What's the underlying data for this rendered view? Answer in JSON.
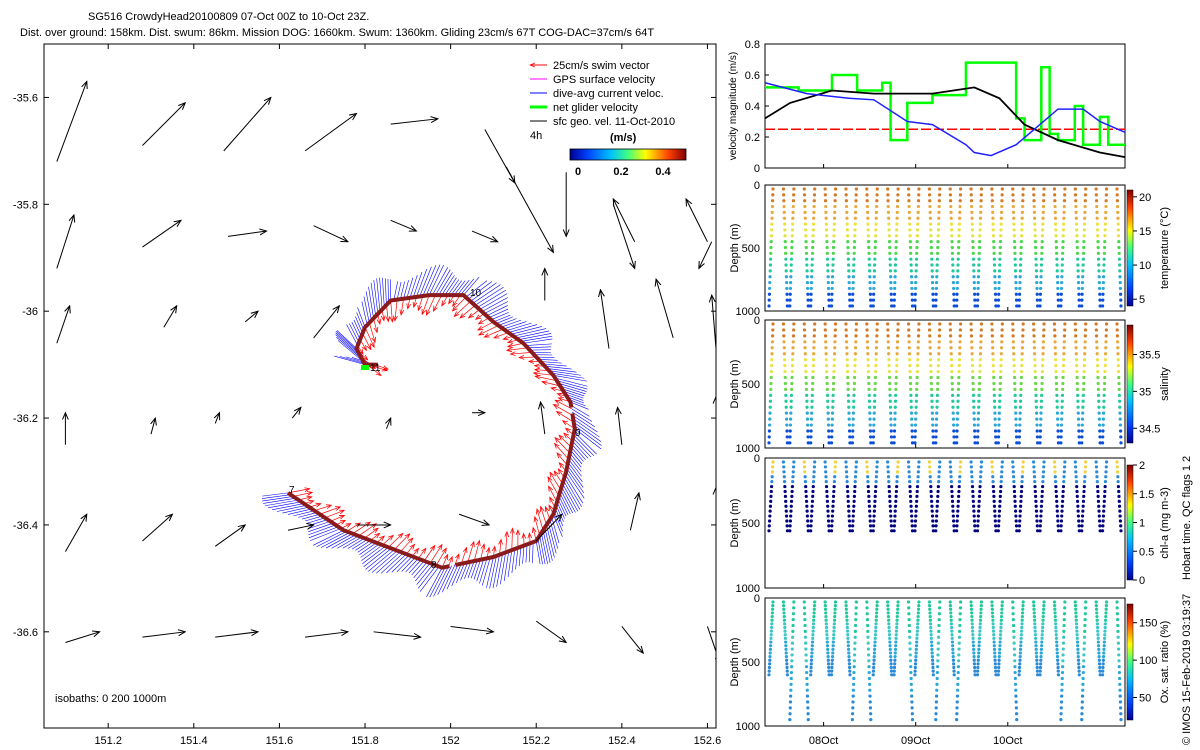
{
  "header": {
    "title_line1": "SG516 CrowdyHead20100809 07-Oct 00Z to 10-Oct 23Z.",
    "title_line2": "Dist. over ground: 158km. Dist. swum: 86km. Mission DOG: 1660km. Swum: 1360km. Gliding 23cm/s 67T COG-DAC=37cm/s 64T"
  },
  "map": {
    "legend": [
      {
        "label": "25cm/s swim vector",
        "color": "#ff0000"
      },
      {
        "label": "GPS surface velocity",
        "color": "#ff00ff"
      },
      {
        "label": "dive-avg current veloc.",
        "color": "#0000ff"
      },
      {
        "label": "net glider velocity",
        "color": "#00ff00"
      },
      {
        "label": "sfc geo. vel. 11-Oct-2010",
        "color": "#000000"
      }
    ],
    "legend_note": "4h",
    "colorbar": {
      "title": "(m/s)",
      "ticks": [
        "0",
        "0.2",
        "0.4"
      ],
      "range": [
        0,
        0.5
      ]
    },
    "day_labels": [
      "7",
      "8",
      "9",
      "10",
      "11"
    ],
    "isobaths_text": "isobaths: 0   200  1000m",
    "xlim": [
      151.05,
      152.62
    ],
    "ylim": [
      -36.78,
      -35.5
    ],
    "xticks": [
      151.2,
      151.4,
      151.6,
      151.8,
      152,
      152.2,
      152.4,
      152.6
    ],
    "xtick_labels": [
      "151.2",
      "151.4",
      "151.6",
      "151.8",
      "152",
      "152.2",
      "152.4",
      "152.6"
    ],
    "yticks": [
      -35.6,
      -35.8,
      -36,
      -36.2,
      -36.4,
      -36.6
    ],
    "ytick_labels": [
      "-35.6",
      "-35.8",
      "-36",
      "-36.2",
      "-36.4",
      "-36.6"
    ],
    "track": [
      [
        151.62,
        -36.34
      ],
      [
        151.75,
        -36.41
      ],
      [
        151.98,
        -36.48
      ],
      [
        152.1,
        -36.46
      ],
      [
        152.2,
        -36.43
      ],
      [
        152.24,
        -36.38
      ],
      [
        152.27,
        -36.3
      ],
      [
        152.29,
        -36.22
      ],
      [
        152.28,
        -36.17
      ],
      [
        152.24,
        -36.12
      ],
      [
        152.17,
        -36.06
      ],
      [
        152.1,
        -36.02
      ],
      [
        152.03,
        -35.97
      ],
      [
        151.95,
        -35.97
      ],
      [
        151.86,
        -35.98
      ],
      [
        151.8,
        -36.03
      ],
      [
        151.78,
        -36.07
      ],
      [
        151.8,
        -36.1
      ],
      [
        151.83,
        -36.1
      ]
    ],
    "geo_vectors": [
      [
        151.08,
        -35.72,
        151.15,
        -35.57
      ],
      [
        151.28,
        -35.69,
        151.38,
        -35.61
      ],
      [
        151.47,
        -35.7,
        151.58,
        -35.6
      ],
      [
        151.66,
        -35.7,
        151.78,
        -35.63
      ],
      [
        151.86,
        -35.65,
        151.97,
        -35.64
      ],
      [
        152.08,
        -35.66,
        152.15,
        -35.76
      ],
      [
        152.27,
        -35.74,
        152.27,
        -35.86
      ],
      [
        152.43,
        -35.87,
        152.38,
        -35.79
      ],
      [
        152.6,
        -35.87,
        152.55,
        -35.79
      ],
      [
        151.08,
        -35.92,
        151.12,
        -35.82
      ],
      [
        151.28,
        -35.88,
        151.37,
        -35.83
      ],
      [
        151.48,
        -35.86,
        151.57,
        -35.85
      ],
      [
        151.68,
        -35.84,
        151.76,
        -35.87
      ],
      [
        151.86,
        -35.83,
        151.92,
        -35.85
      ],
      [
        152.05,
        -35.85,
        152.11,
        -35.87
      ],
      [
        152.13,
        -35.73,
        152.24,
        -35.89
      ],
      [
        152.38,
        -35.8,
        152.43,
        -35.92
      ],
      [
        152.61,
        -35.87,
        152.58,
        -35.92
      ],
      [
        151.08,
        -36.06,
        151.11,
        -35.99
      ],
      [
        151.33,
        -36.03,
        151.36,
        -35.99
      ],
      [
        151.52,
        -36.02,
        151.55,
        -36.0
      ],
      [
        151.68,
        -36.05,
        151.74,
        -35.99
      ],
      [
        152.22,
        -35.98,
        152.22,
        -35.92
      ],
      [
        152.37,
        -36.07,
        152.35,
        -35.96
      ],
      [
        152.52,
        -36.05,
        152.48,
        -35.94
      ],
      [
        152.62,
        -36.07,
        152.61,
        -35.97
      ],
      [
        151.1,
        -36.25,
        151.1,
        -36.19
      ],
      [
        151.3,
        -36.23,
        151.31,
        -36.2
      ],
      [
        151.45,
        -36.21,
        151.46,
        -36.19
      ],
      [
        151.63,
        -36.2,
        151.65,
        -36.18
      ],
      [
        151.85,
        -36.22,
        151.86,
        -36.2
      ],
      [
        152.05,
        -36.19,
        152.08,
        -36.19
      ],
      [
        152.22,
        -36.23,
        152.21,
        -36.17
      ],
      [
        152.4,
        -36.25,
        152.39,
        -36.18
      ],
      [
        152.62,
        -36.26,
        152.62,
        -36.16
      ],
      [
        151.1,
        -36.45,
        151.15,
        -36.38
      ],
      [
        151.28,
        -36.43,
        151.35,
        -36.38
      ],
      [
        151.45,
        -36.44,
        151.52,
        -36.4
      ],
      [
        151.62,
        -36.41,
        151.68,
        -36.4
      ],
      [
        151.78,
        -36.4,
        151.86,
        -36.4
      ],
      [
        152.02,
        -36.38,
        152.09,
        -36.4
      ],
      [
        152.2,
        -36.43,
        152.26,
        -36.38
      ],
      [
        152.42,
        -36.41,
        152.44,
        -36.34
      ],
      [
        152.62,
        -36.43,
        152.62,
        -36.33
      ],
      [
        151.1,
        -36.62,
        151.18,
        -36.6
      ],
      [
        151.28,
        -36.61,
        151.38,
        -36.6
      ],
      [
        151.45,
        -36.61,
        151.55,
        -36.6
      ],
      [
        151.66,
        -36.61,
        151.76,
        -36.6
      ],
      [
        151.82,
        -36.6,
        151.93,
        -36.61
      ],
      [
        152.0,
        -36.59,
        152.1,
        -36.6
      ],
      [
        152.2,
        -36.58,
        152.27,
        -36.62
      ],
      [
        152.4,
        -36.59,
        152.45,
        -36.64
      ],
      [
        152.6,
        -36.59,
        152.63,
        -36.66
      ]
    ]
  },
  "velocity_panel": {
    "ylabel": "velocity magnitude (m/s)",
    "ylim": [
      0,
      0.8
    ],
    "yticks": [
      "0",
      "0.2",
      "0.4",
      "0.6",
      "0.8"
    ],
    "swim_speed": 0.25,
    "dac_speed": [
      [
        0,
        0.55
      ],
      [
        0.5,
        0.48
      ],
      [
        1,
        0.45
      ],
      [
        1.3,
        0.44
      ],
      [
        1.7,
        0.3
      ],
      [
        2,
        0.28
      ],
      [
        2.4,
        0.15
      ],
      [
        2.5,
        0.1
      ],
      [
        2.7,
        0.08
      ],
      [
        3,
        0.15
      ],
      [
        3.5,
        0.38
      ],
      [
        3.8,
        0.38
      ],
      [
        4,
        0.3
      ],
      [
        4.3,
        0.23
      ]
    ],
    "sfc_geo_speed": [
      [
        0,
        0.32
      ],
      [
        0.3,
        0.42
      ],
      [
        0.8,
        0.5
      ],
      [
        1.3,
        0.48
      ],
      [
        2,
        0.48
      ],
      [
        2.5,
        0.52
      ],
      [
        2.8,
        0.45
      ],
      [
        3.1,
        0.28
      ],
      [
        3.5,
        0.18
      ],
      [
        4,
        0.1
      ],
      [
        4.3,
        0.07
      ]
    ],
    "net_speed_steps": [
      [
        0,
        0.52
      ],
      [
        0.4,
        0.5
      ],
      [
        0.5,
        0.5
      ],
      [
        0.8,
        0.6
      ],
      [
        1.1,
        0.5
      ],
      [
        1.4,
        0.55
      ],
      [
        1.5,
        0.18
      ],
      [
        1.7,
        0.42
      ],
      [
        2.0,
        0.47
      ],
      [
        2.3,
        0.47
      ],
      [
        2.4,
        0.68
      ],
      [
        2.65,
        0.68
      ],
      [
        3.0,
        0.32
      ],
      [
        3.1,
        0.18
      ],
      [
        3.3,
        0.65
      ],
      [
        3.4,
        0.22
      ],
      [
        3.5,
        0.18
      ],
      [
        3.7,
        0.4
      ],
      [
        3.8,
        0.15
      ],
      [
        4.0,
        0.33
      ],
      [
        4.1,
        0.15
      ],
      [
        4.3,
        0.15
      ]
    ]
  },
  "profile_panels": [
    {
      "name": "temperature",
      "clabel": "temperature (°C)",
      "cticks": [
        "5",
        "10",
        "15",
        "20"
      ],
      "clim": [
        4,
        21
      ],
      "max_depth": 1000,
      "ylabel": "Depth (m)",
      "ytick_labels": [
        "0",
        "500",
        "1000"
      ],
      "colors": [
        "#0b4fd8",
        "#2aa7d6",
        "#21c99a",
        "#4cd64c",
        "#e9e33f",
        "#e8a83c",
        "#d37a28"
      ],
      "dive_depth": 960
    },
    {
      "name": "salinity",
      "clabel": "salinity",
      "cticks": [
        "34.5",
        "35",
        "35.5"
      ],
      "clim": [
        34.3,
        35.9
      ],
      "max_depth": 1000,
      "ylabel": "Depth (m)",
      "ytick_labels": [
        "0",
        "500",
        "1000"
      ],
      "colors": [
        "#0b4fd8",
        "#2aa7d6",
        "#21c99a",
        "#6ad64a",
        "#e9e33f",
        "#e8a83c",
        "#d37a28"
      ],
      "dive_depth": 960
    },
    {
      "name": "chl",
      "clabel": "chl-a (mg m-3)",
      "cticks": [
        "0",
        "0.5",
        "1",
        "1.5",
        "2"
      ],
      "clim": [
        0,
        2
      ],
      "max_depth": 1000,
      "ylabel": "Depth (m)",
      "ytick_labels": [
        "0",
        "500",
        "1000"
      ],
      "colors": [
        "#00007f",
        "#0b2aa8",
        "#2a8ad6",
        "#3cc6d6",
        "#f0d23c"
      ],
      "dive_depth": 560
    },
    {
      "name": "oxygen",
      "clabel": "Ox. sat. ratio (%)",
      "cticks": [
        "50",
        "100",
        "150"
      ],
      "clim": [
        20,
        175
      ],
      "max_depth": 1000,
      "ylabel": "Depth (m)",
      "ytick_labels": [
        "0",
        "500",
        "1000"
      ],
      "colors": [
        "#21c99a",
        "#3cc6c6",
        "#2aa7d6",
        "#2a8ad6"
      ],
      "dive_depth": 960
    }
  ],
  "time_axis": {
    "days": 4.3,
    "tick_labels": [
      "08Oct",
      "09Oct",
      "10Oct"
    ],
    "tick_days": [
      0.7,
      1.8,
      2.9
    ]
  },
  "flags_text": "Hobart time. QC flags 1  2",
  "copyright_text": "© IMOS 15-Feb-2019 03:19:37"
}
